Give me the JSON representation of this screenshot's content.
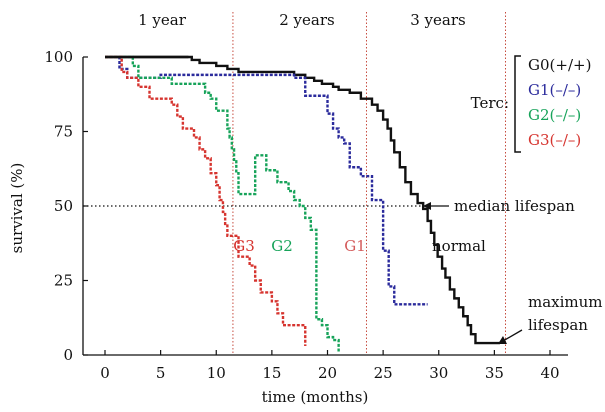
{
  "chart_data": {
    "type": "line",
    "xlabel": "time (months)",
    "ylabel": "survival (%)",
    "xlim": [
      -2,
      40
    ],
    "ylim": [
      0,
      100
    ],
    "xticks": [
      "0",
      "5",
      "10",
      "15",
      "20",
      "25",
      "30",
      "35",
      "40"
    ],
    "yticks": [
      "0",
      "25",
      "50",
      "75",
      "100"
    ],
    "period_labels": [
      "1 year",
      "2 years",
      "3 years"
    ],
    "year_boundaries_months": [
      11.5,
      23.5,
      36
    ],
    "median_line_value": 50,
    "legend": {
      "title": "Terc:",
      "entries": [
        "G0(+/+)",
        "G1(–/–)",
        "G2(–/–)",
        "G3(–/–)"
      ]
    },
    "annotations": {
      "median": "median lifespan",
      "maximum_line1": "maximum",
      "maximum_line2": "lifespan",
      "normal": "normal",
      "g1": "G1",
      "g2": "G2",
      "g3": "G3"
    },
    "colors": {
      "G0": "#111111",
      "G1": "#2b2b9c",
      "G2": "#17a35a",
      "G3": "#d6342f",
      "boundary": "#c0392b"
    },
    "series": [
      {
        "name": "G0(+/+)",
        "points": [
          [
            0,
            100
          ],
          [
            7.5,
            100
          ],
          [
            7.8,
            99
          ],
          [
            8.5,
            98
          ],
          [
            10,
            97
          ],
          [
            11,
            96
          ],
          [
            12,
            95
          ],
          [
            15,
            95
          ],
          [
            17,
            94
          ],
          [
            18,
            93
          ],
          [
            18.8,
            92
          ],
          [
            19.5,
            91
          ],
          [
            20.5,
            90
          ],
          [
            21,
            89
          ],
          [
            22,
            88
          ],
          [
            23,
            86
          ],
          [
            24,
            84
          ],
          [
            24.5,
            82
          ],
          [
            25,
            79
          ],
          [
            25.4,
            76
          ],
          [
            25.7,
            72
          ],
          [
            26,
            68
          ],
          [
            26.5,
            63
          ],
          [
            27,
            58
          ],
          [
            27.5,
            54
          ],
          [
            28.1,
            51
          ],
          [
            28.6,
            49
          ],
          [
            29,
            45
          ],
          [
            29.3,
            41
          ],
          [
            29.6,
            37
          ],
          [
            29.9,
            33
          ],
          [
            30.3,
            29
          ],
          [
            30.6,
            26
          ],
          [
            31,
            22
          ],
          [
            31.4,
            19
          ],
          [
            31.8,
            16
          ],
          [
            32.2,
            13
          ],
          [
            32.6,
            10
          ],
          [
            32.9,
            7
          ],
          [
            33.3,
            4
          ],
          [
            35,
            4
          ],
          [
            35.5,
            4
          ]
        ]
      },
      {
        "name": "G1(–/–)",
        "points": [
          [
            0,
            100
          ],
          [
            1,
            100
          ],
          [
            1.3,
            96
          ],
          [
            2,
            93
          ],
          [
            4,
            93
          ],
          [
            5,
            94
          ],
          [
            17,
            94
          ],
          [
            17,
            93
          ],
          [
            18,
            90
          ],
          [
            18,
            87
          ],
          [
            20,
            87
          ],
          [
            20,
            81
          ],
          [
            20.5,
            76
          ],
          [
            21,
            73
          ],
          [
            21.5,
            71
          ],
          [
            22,
            67
          ],
          [
            22,
            63
          ],
          [
            23,
            60
          ],
          [
            23.5,
            60
          ],
          [
            24,
            52
          ],
          [
            25,
            50
          ],
          [
            25,
            40
          ],
          [
            25,
            35
          ],
          [
            25.5,
            29
          ],
          [
            25.5,
            23
          ],
          [
            26,
            17
          ],
          [
            29,
            17
          ]
        ]
      },
      {
        "name": "G2(–/–)",
        "points": [
          [
            0,
            100
          ],
          [
            2,
            100
          ],
          [
            2.5,
            97
          ],
          [
            3,
            93
          ],
          [
            5,
            93
          ],
          [
            6,
            91
          ],
          [
            9,
            90
          ],
          [
            9,
            88
          ],
          [
            9.5,
            86
          ],
          [
            10,
            86
          ],
          [
            10,
            82
          ],
          [
            11,
            82
          ],
          [
            11,
            76
          ],
          [
            11.2,
            73
          ],
          [
            11.4,
            69
          ],
          [
            11.6,
            65
          ],
          [
            11.8,
            61
          ],
          [
            12,
            58
          ],
          [
            12,
            54
          ],
          [
            12.5,
            54
          ],
          [
            13.5,
            67
          ],
          [
            14.5,
            62
          ],
          [
            15.5,
            58
          ],
          [
            16.5,
            55
          ],
          [
            17,
            52
          ],
          [
            17.5,
            50
          ],
          [
            18,
            46
          ],
          [
            18.5,
            42
          ],
          [
            19,
            35
          ],
          [
            19,
            28
          ],
          [
            19,
            18
          ],
          [
            19,
            12
          ],
          [
            19.5,
            10
          ],
          [
            20,
            6
          ],
          [
            20.5,
            5
          ],
          [
            21,
            1
          ]
        ]
      },
      {
        "name": "G3(–/–)",
        "points": [
          [
            0,
            100
          ],
          [
            1,
            100
          ],
          [
            1.5,
            95
          ],
          [
            2,
            93
          ],
          [
            3,
            90
          ],
          [
            4,
            86
          ],
          [
            6,
            86
          ],
          [
            6,
            84
          ],
          [
            6.5,
            80
          ],
          [
            7,
            76
          ],
          [
            8,
            73
          ],
          [
            8.5,
            69
          ],
          [
            9,
            66
          ],
          [
            9.5,
            61
          ],
          [
            10,
            57
          ],
          [
            10.3,
            52
          ],
          [
            10.6,
            48
          ],
          [
            10.8,
            44
          ],
          [
            11,
            40
          ],
          [
            12,
            33
          ],
          [
            13,
            30
          ],
          [
            13.5,
            25
          ],
          [
            14,
            21
          ],
          [
            15,
            18
          ],
          [
            15.5,
            14
          ],
          [
            16,
            10
          ],
          [
            17,
            10
          ],
          [
            18,
            7
          ],
          [
            18,
            3
          ]
        ]
      }
    ]
  }
}
